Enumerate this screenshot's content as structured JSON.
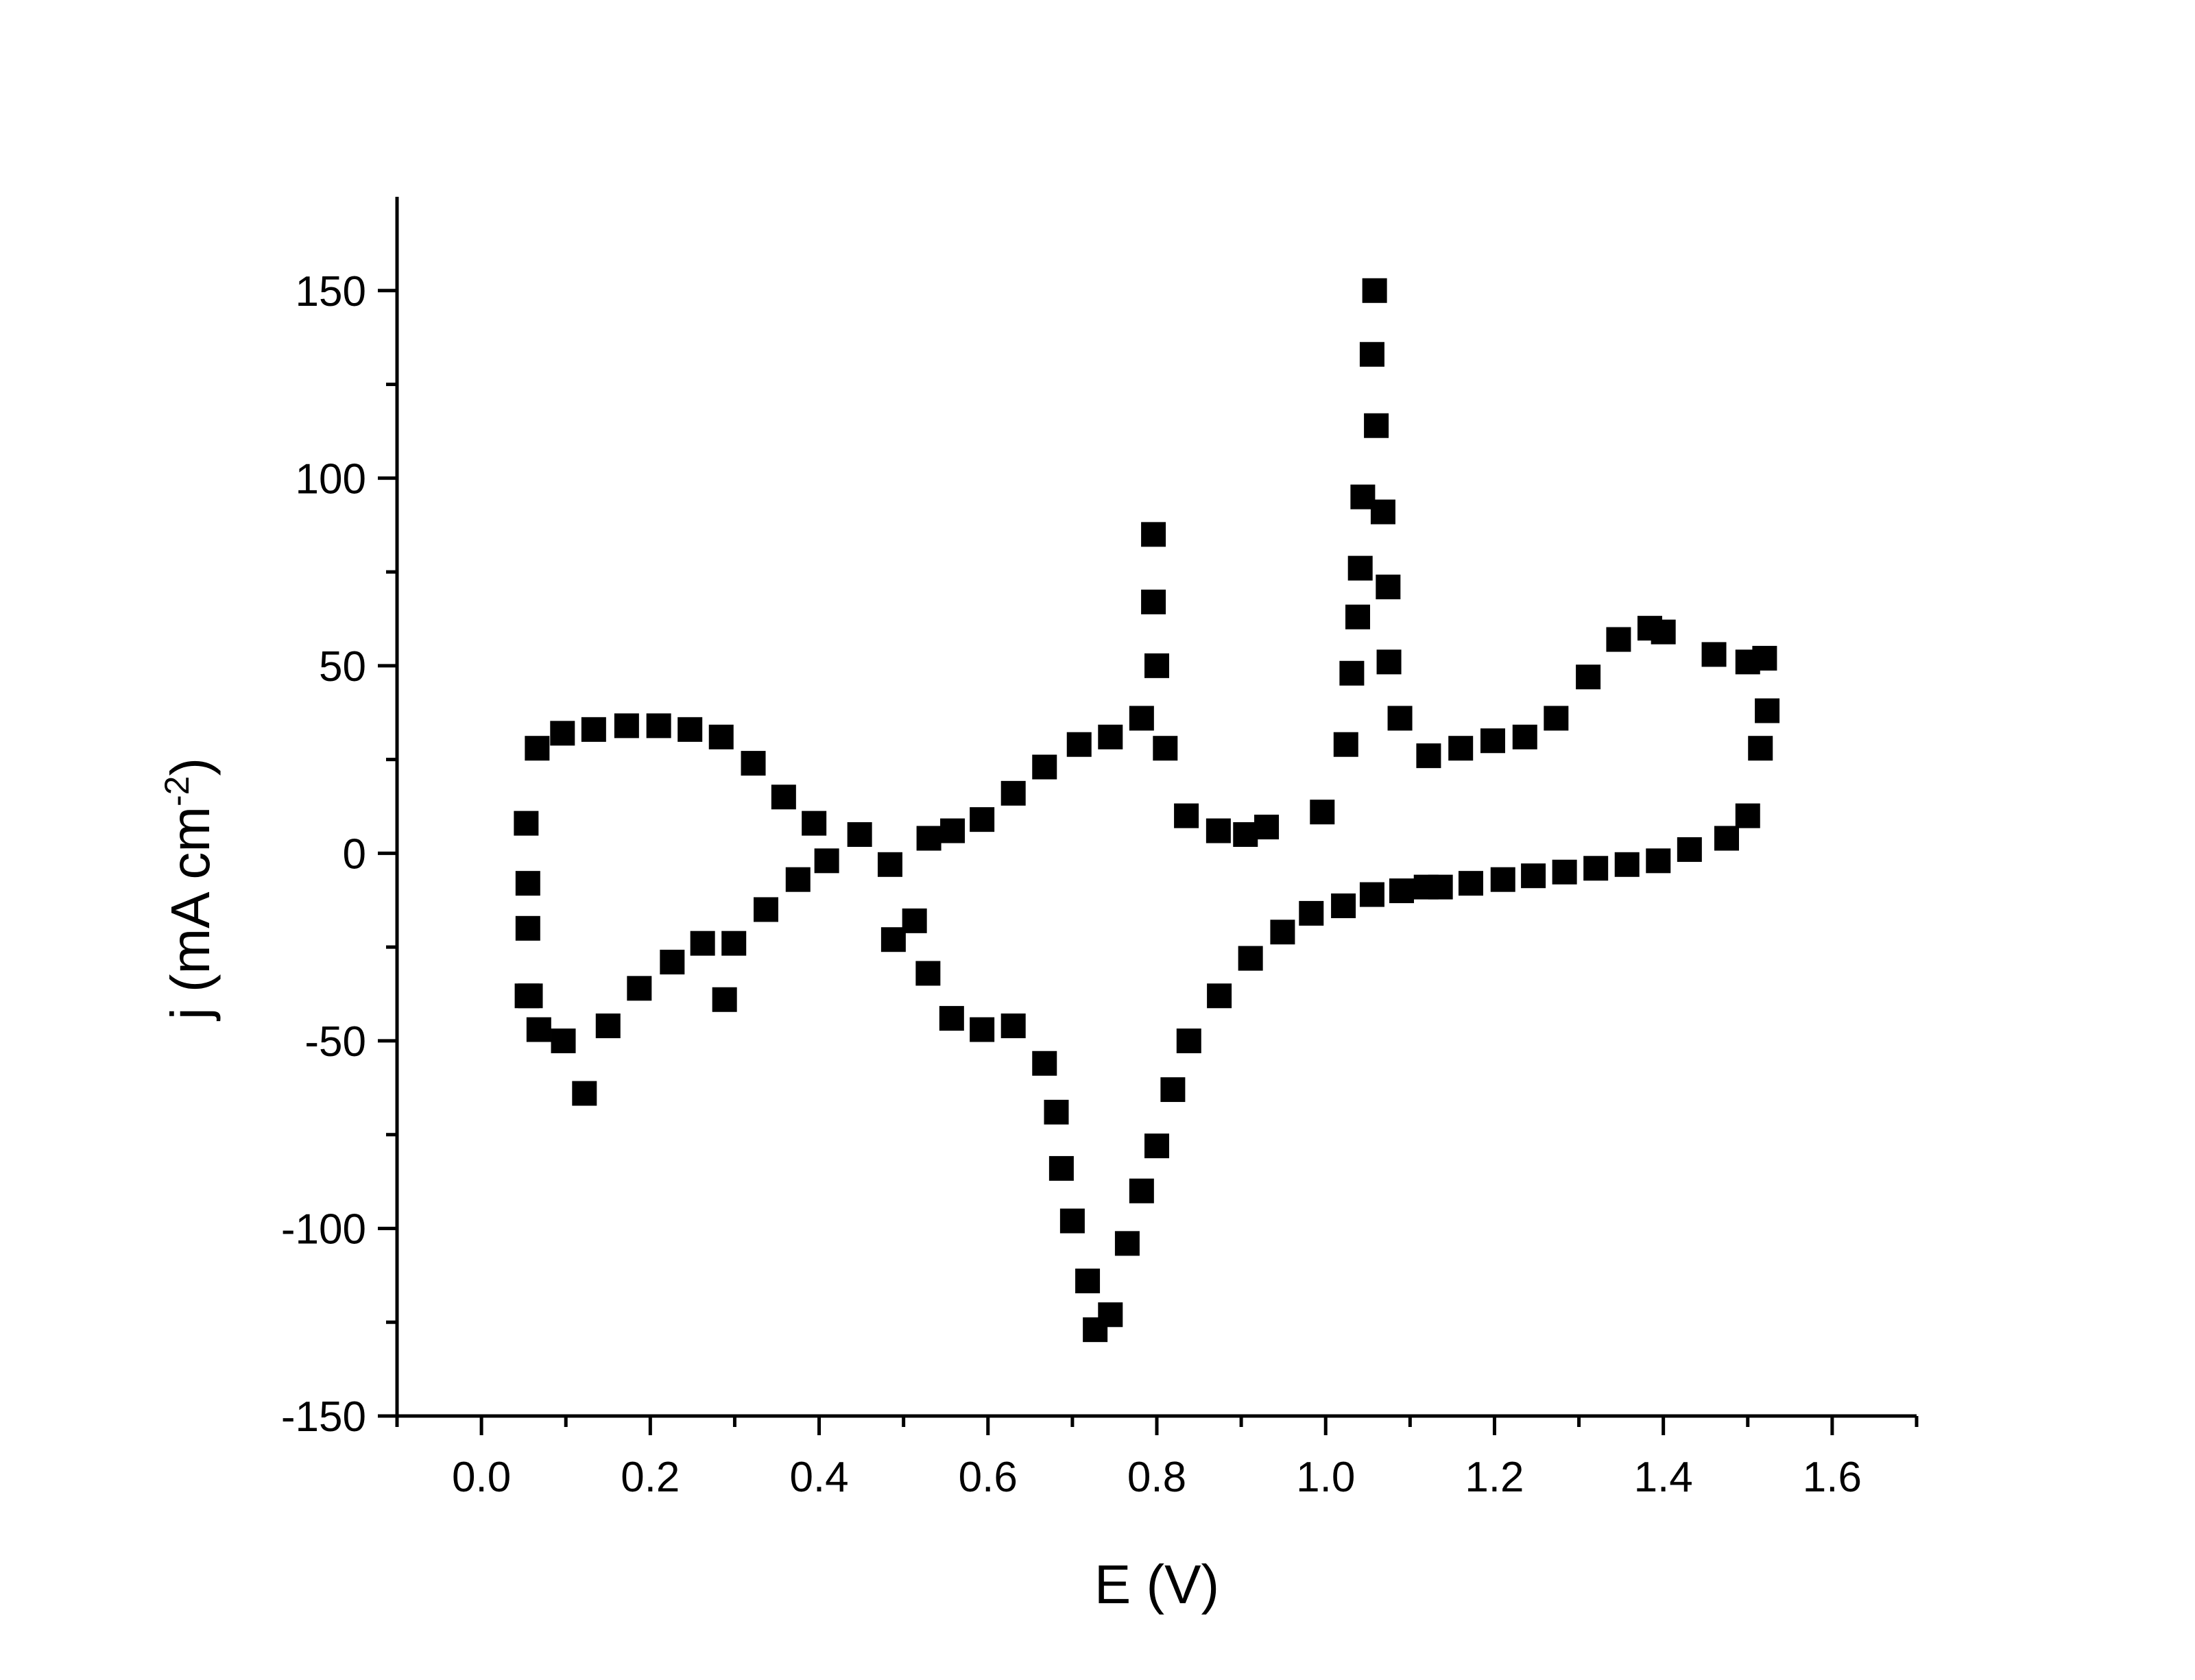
{
  "chart_data": {
    "type": "scatter",
    "title": "",
    "xlabel": "E (V)",
    "ylabel_main": "j (mA cm",
    "ylabel_sup": "-2",
    "ylabel_tail": ")",
    "xlim": [
      -0.1,
      1.7
    ],
    "ylim": [
      -150,
      175
    ],
    "x_ticks": [
      0.0,
      0.2,
      0.4,
      0.6,
      0.8,
      1.0,
      1.2,
      1.4,
      1.6
    ],
    "x_tick_labels": [
      "0.0",
      "0.2",
      "0.4",
      "0.6",
      "0.8",
      "1.0",
      "1.2",
      "1.4",
      "1.6"
    ],
    "y_ticks": [
      -150,
      -100,
      -50,
      0,
      50,
      100,
      150
    ],
    "y_tick_labels": [
      "-150",
      "-100",
      "-50",
      "0",
      "50",
      "100",
      "150"
    ],
    "grid": false,
    "legend": "none",
    "marker": "square",
    "marker_color": "#000000",
    "series": [
      {
        "x": [
          0.053,
          0.055,
          0.055,
          0.054,
          0.066,
          0.096,
          0.133,
          0.172,
          0.21,
          0.247,
          0.284,
          0.322,
          0.358,
          0.394,
          0.448,
          0.53,
          0.558,
          0.593,
          0.63,
          0.667,
          0.708,
          0.745,
          0.782,
          0.796,
          0.796,
          0.8,
          0.81,
          0.835,
          0.873,
          0.905,
          0.93,
          0.996,
          1.024,
          1.031,
          1.038,
          1.041,
          1.044,
          1.055,
          1.058,
          1.06,
          1.068,
          1.074,
          1.075,
          1.088,
          1.122,
          1.16,
          1.198,
          1.236,
          1.273,
          1.311,
          1.347,
          1.384,
          1.4,
          1.46,
          1.5,
          1.52,
          1.523,
          1.515,
          1.5,
          1.475,
          1.431,
          1.394,
          1.357,
          1.32,
          1.283,
          1.246,
          1.21,
          1.172,
          1.136,
          1.119,
          1.09,
          1.055,
          1.021,
          0.983,
          0.949,
          0.911,
          0.874,
          0.838,
          0.819,
          0.8,
          0.782,
          0.765,
          0.745,
          0.727,
          0.718,
          0.7,
          0.687,
          0.681,
          0.667,
          0.63,
          0.593,
          0.557,
          0.529,
          0.513,
          0.484,
          0.488,
          0.409,
          0.375,
          0.337,
          0.299,
          0.288,
          0.262,
          0.226,
          0.187,
          0.15,
          0.122,
          0.097,
          0.068,
          0.058
        ],
        "y": [
          8,
          -8,
          -20,
          -38,
          28,
          32,
          33,
          34,
          34,
          33,
          31,
          24,
          15,
          8,
          5,
          4,
          6,
          9,
          16,
          23,
          29,
          31,
          36,
          85,
          67,
          50,
          28,
          10,
          6,
          5,
          7,
          11,
          29,
          48,
          63,
          76,
          95,
          133,
          150,
          114,
          91,
          71,
          51,
          36,
          26,
          28,
          30,
          31,
          36,
          47,
          57,
          60,
          59,
          53,
          51,
          52,
          38,
          28,
          10,
          4,
          1,
          -2,
          -3,
          -4,
          -5,
          -6,
          -7,
          -8,
          -9,
          -9,
          -10,
          -11,
          -14,
          -16,
          -21,
          -28,
          -38,
          -50,
          -63,
          -78,
          -90,
          -104,
          -123,
          -127,
          -114,
          -98,
          -84,
          -69,
          -56,
          -46,
          -47,
          -44,
          -32,
          -18,
          -3,
          -23,
          -2,
          -7,
          -15,
          -24,
          -39,
          -24,
          -29,
          -36,
          -46,
          -64,
          -50,
          -47,
          -38
        ]
      }
    ]
  }
}
